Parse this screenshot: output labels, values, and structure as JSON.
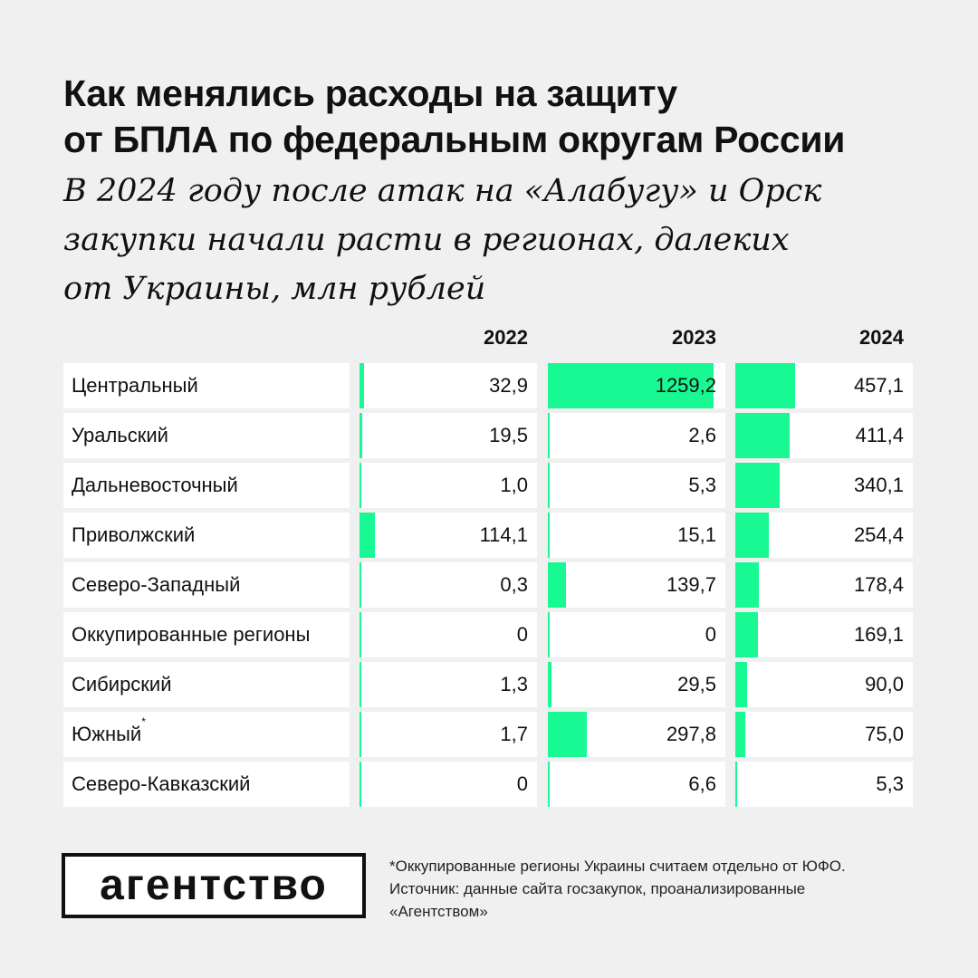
{
  "title_lines": [
    "Как менялись расходы на защиту",
    "от БПЛА по федеральным округам России"
  ],
  "subtitle_lines": [
    "В 2024 году после атак на «Алабугу» и Орск",
    "закупки начали расти в регионах, далеких",
    "от Украины, млн рублей"
  ],
  "accent_color": "#19f993",
  "chart_data": {
    "type": "table",
    "unit": "млн рублей",
    "years": [
      "2022",
      "2023",
      "2024"
    ],
    "rows": [
      {
        "name": "Центральный",
        "values": [
          32.9,
          1259.2,
          457.1
        ],
        "labels": [
          "32,9",
          "1259,2",
          "457,1"
        ]
      },
      {
        "name": "Уральский",
        "values": [
          19.5,
          2.6,
          411.4
        ],
        "labels": [
          "19,5",
          "2,6",
          "411,4"
        ]
      },
      {
        "name": "Дальневосточный",
        "values": [
          1.0,
          5.3,
          340.1
        ],
        "labels": [
          "1,0",
          "5,3",
          "340,1"
        ]
      },
      {
        "name": "Приволжский",
        "values": [
          114.1,
          15.1,
          254.4
        ],
        "labels": [
          "114,1",
          "15,1",
          "254,4"
        ]
      },
      {
        "name": "Северо-Западный",
        "values": [
          0.3,
          139.7,
          178.4
        ],
        "labels": [
          "0,3",
          "139,7",
          "178,4"
        ]
      },
      {
        "name": "Оккупированные регионы",
        "values": [
          0,
          0,
          169.1
        ],
        "labels": [
          "0",
          "0",
          "169,1"
        ]
      },
      {
        "name": "Сибирский",
        "values": [
          1.3,
          29.5,
          90.0
        ],
        "labels": [
          "1,3",
          "29,5",
          "90,0"
        ]
      },
      {
        "name": "Южный",
        "footnote_mark": "*",
        "values": [
          1.7,
          297.8,
          75.0
        ],
        "labels": [
          "1,7",
          "297,8",
          "75,0"
        ]
      },
      {
        "name": "Северо-Кавказский",
        "values": [
          0,
          6.6,
          5.3
        ],
        "labels": [
          "0",
          "6,6",
          "5,3"
        ]
      }
    ]
  },
  "logo_text": "агентство",
  "footnote_lines": [
    "*Оккупированные регионы Украины считаем отдельно от ЮФО.",
    "Источник: данные сайта госзакупок, проанализированные",
    "«Агентством»"
  ]
}
